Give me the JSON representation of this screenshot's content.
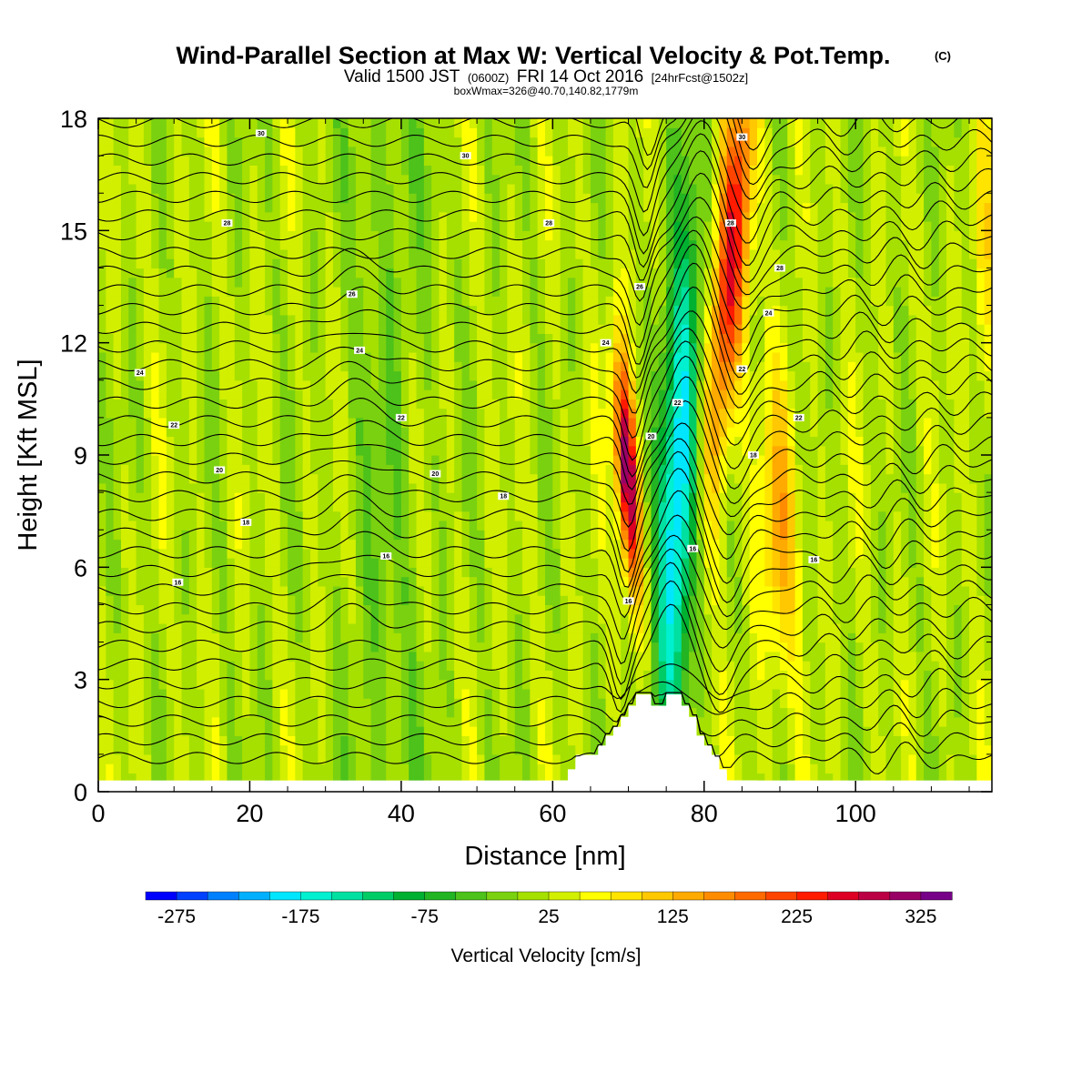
{
  "chart_data": {
    "type": "heatmap",
    "title": "Wind-Parallel Section at Max W: Vertical Velocity & Pot.Temp.",
    "title_mark": "(C)",
    "subtitle": {
      "prefix": "Valid 1500 JST",
      "zulu": "(0600Z)",
      "date": "FRI 14 Oct 2016",
      "forecast": "[24hrFcst@1502z]"
    },
    "box_info": "boxWmax=326@40.70,140.82,1779m",
    "xlabel": "Distance [nm]",
    "ylabel": "Height [Kft MSL]",
    "xlim": [
      0,
      118
    ],
    "ylim": [
      0,
      18
    ],
    "xticks": [
      "0",
      "20",
      "40",
      "60",
      "80",
      "100"
    ],
    "yticks": [
      "0",
      "3",
      "6",
      "9",
      "12",
      "15",
      "18"
    ],
    "colorbar": {
      "label": "Vertical Velocity [cm/s]",
      "tick_labels": [
        "-275",
        "-175",
        "-75",
        "25",
        "125",
        "225",
        "325"
      ],
      "levels": [
        -300,
        -275,
        -250,
        -225,
        -200,
        -175,
        -150,
        -125,
        -100,
        -75,
        -50,
        -25,
        0,
        25,
        50,
        75,
        100,
        125,
        150,
        175,
        200,
        225,
        250,
        275,
        300,
        325,
        350
      ],
      "colors": [
        "#0000ff",
        "#0040ff",
        "#0080ff",
        "#00b0ff",
        "#00e6ff",
        "#00f0d0",
        "#00e0a0",
        "#00cc66",
        "#00b030",
        "#22b422",
        "#4cc21a",
        "#7ad110",
        "#a6e000",
        "#d2ef00",
        "#ffff00",
        "#ffe400",
        "#ffc800",
        "#ffaa00",
        "#ff8c00",
        "#ff6a00",
        "#ff4400",
        "#ff1a00",
        "#dd0022",
        "#bb0044",
        "#990066",
        "#770088"
      ]
    },
    "series": [
      {
        "name": "Vertical Velocity",
        "units": "cm/s",
        "features": [
          {
            "x": 70.0,
            "z": 8.5,
            "w": 326
          },
          {
            "x": 76.5,
            "z": 8.0,
            "w": -240
          },
          {
            "x": 83.5,
            "z": 14.0,
            "w": 230
          },
          {
            "x": 90.0,
            "z": 7.0,
            "w": 110
          },
          {
            "x": 117.0,
            "z": 14.0,
            "w": 60
          }
        ]
      },
      {
        "name": "Pot.Temp.",
        "units": "C",
        "contour_labels": [
          {
            "text": "30",
            "x": 21.5,
            "z": 17.6
          },
          {
            "text": "30",
            "x": 48.5,
            "z": 17.0
          },
          {
            "text": "30",
            "x": 85.0,
            "z": 17.5
          },
          {
            "text": "28",
            "x": 17.0,
            "z": 15.2
          },
          {
            "text": "28",
            "x": 59.5,
            "z": 15.2
          },
          {
            "text": "28",
            "x": 83.5,
            "z": 15.2
          },
          {
            "text": "28",
            "x": 90.0,
            "z": 14.0
          },
          {
            "text": "26",
            "x": 33.5,
            "z": 13.3
          },
          {
            "text": "26",
            "x": 71.5,
            "z": 13.5
          },
          {
            "text": "24",
            "x": 5.5,
            "z": 11.2
          },
          {
            "text": "24",
            "x": 34.5,
            "z": 11.8
          },
          {
            "text": "24",
            "x": 67.0,
            "z": 12.0
          },
          {
            "text": "24",
            "x": 88.5,
            "z": 12.8
          },
          {
            "text": "22",
            "x": 10.0,
            "z": 9.8
          },
          {
            "text": "22",
            "x": 40.0,
            "z": 10.0
          },
          {
            "text": "22",
            "x": 76.5,
            "z": 10.4
          },
          {
            "text": "22",
            "x": 85.0,
            "z": 11.3
          },
          {
            "text": "22",
            "x": 92.5,
            "z": 10.0
          },
          {
            "text": "20",
            "x": 16.0,
            "z": 8.6
          },
          {
            "text": "20",
            "x": 44.5,
            "z": 8.5
          },
          {
            "text": "20",
            "x": 73.0,
            "z": 9.5
          },
          {
            "text": "18",
            "x": 19.5,
            "z": 7.2
          },
          {
            "text": "18",
            "x": 53.5,
            "z": 7.9
          },
          {
            "text": "18",
            "x": 86.5,
            "z": 9.0
          },
          {
            "text": "16",
            "x": 38.0,
            "z": 6.3
          },
          {
            "text": "16",
            "x": 10.5,
            "z": 5.6
          },
          {
            "text": "16",
            "x": 78.5,
            "z": 6.5
          },
          {
            "text": "16",
            "x": 94.5,
            "z": 6.2
          },
          {
            "text": "16",
            "x": 70.0,
            "z": 5.1
          }
        ]
      }
    ],
    "terrain": {
      "x": [
        60,
        62,
        62,
        63,
        63,
        64,
        64,
        65,
        65,
        66,
        66,
        67,
        67,
        68,
        68,
        69,
        69,
        70,
        70,
        71,
        71,
        72,
        72,
        73,
        73,
        74,
        74,
        75,
        75,
        76,
        76,
        77,
        77,
        78,
        78,
        79,
        79,
        80,
        80,
        81,
        81,
        82,
        82,
        83,
        83,
        84,
        84,
        85,
        85,
        87
      ],
      "z": [
        0.3,
        0.3,
        0.6,
        0.6,
        0.9,
        0.9,
        0.9,
        0.9,
        0.9,
        0.9,
        1.2,
        1.2,
        1.5,
        1.5,
        1.7,
        1.7,
        2.0,
        2.0,
        2.3,
        2.3,
        2.6,
        2.6,
        2.6,
        2.6,
        2.3,
        2.3,
        2.3,
        2.3,
        2.6,
        2.6,
        2.6,
        2.6,
        2.3,
        2.3,
        2.0,
        2.0,
        1.5,
        1.5,
        1.2,
        1.2,
        0.9,
        0.9,
        0.6,
        0.6,
        0.3,
        0.3,
        0.3,
        0.3,
        0.3,
        0.3
      ]
    },
    "grid": false,
    "legend": "colorbar-bottom"
  }
}
